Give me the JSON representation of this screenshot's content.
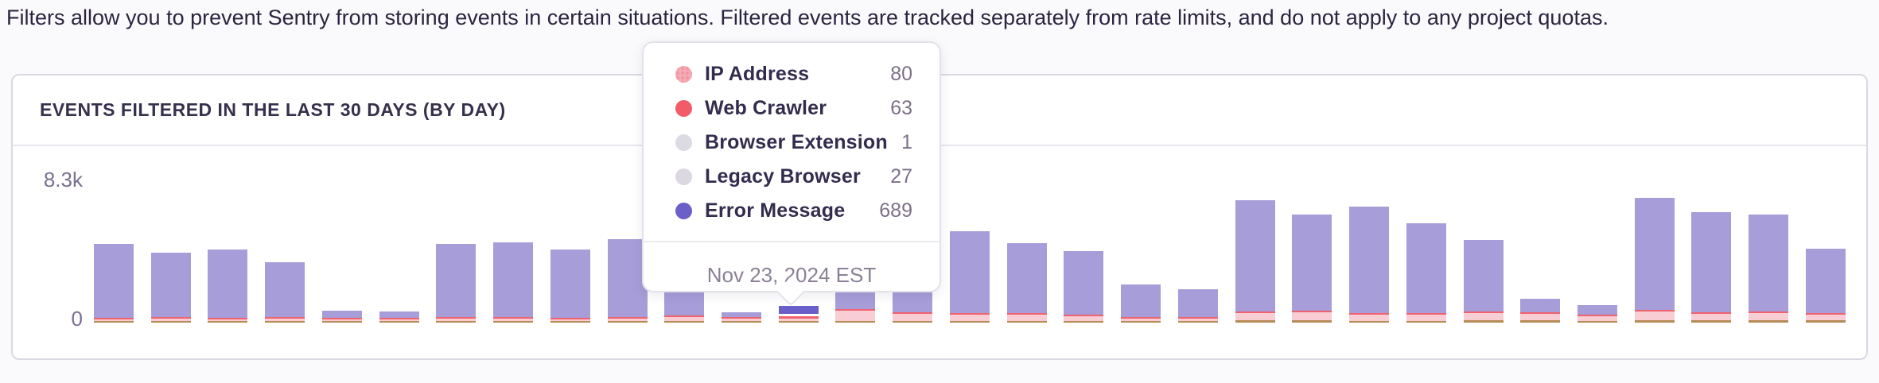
{
  "page": {
    "background": "#faf9fb",
    "description": "Filters allow you to prevent Sentry from storing events in certain situations. Filtered events are tracked separately from rate limits, and do not apply to any project quotas."
  },
  "panel": {
    "title": "EVENTS FILTERED IN THE LAST 30 DAYS (BY DAY)"
  },
  "chart": {
    "y_axis": {
      "max_label": "8.3k",
      "zero_label": "0",
      "max_value": 8300,
      "min_value": 0
    }
  },
  "chart_data": {
    "type": "bar",
    "stacked": true,
    "title": "Events filtered in the last 30 days (by day)",
    "num_days": 31,
    "ylim": [
      0,
      8300
    ],
    "layout_hints": {
      "legend": "tooltip-only",
      "grid": "off",
      "y_ticks": [
        "0",
        "8.3k"
      ]
    },
    "series": [
      {
        "name": "IP Address",
        "key": "ip_address",
        "legend_color": "#f5a9b2",
        "bar_color": "#f8cdd4",
        "pattern": true,
        "values": [
          100,
          120,
          100,
          120,
          60,
          60,
          120,
          120,
          100,
          130,
          250,
          150,
          80,
          600,
          420,
          380,
          380,
          300,
          120,
          150,
          420,
          500,
          380,
          350,
          420,
          380,
          260,
          500,
          380,
          420,
          350
        ]
      },
      {
        "name": "Web Crawler",
        "key": "web_crawler",
        "legend_color": "#f15c68",
        "bar_color": "#f0626e",
        "pattern": false,
        "values": [
          40,
          40,
          40,
          40,
          20,
          20,
          50,
          50,
          40,
          50,
          30,
          30,
          63,
          60,
          50,
          60,
          60,
          50,
          30,
          40,
          60,
          80,
          60,
          60,
          60,
          100,
          80,
          60,
          60,
          60,
          80
        ]
      },
      {
        "name": "Browser Extension",
        "key": "browser_extension",
        "legend_color": "#dcdae2",
        "bar_color": "#dcdae2",
        "pattern": false,
        "values": [
          2,
          2,
          2,
          2,
          1,
          1,
          2,
          2,
          2,
          2,
          2,
          1,
          1,
          2,
          2,
          2,
          2,
          2,
          1,
          1,
          2,
          2,
          2,
          2,
          2,
          2,
          2,
          2,
          2,
          2,
          2
        ]
      },
      {
        "name": "Legacy Browser",
        "key": "legacy_browser",
        "legend_color": "#dbd8e2",
        "bar_color": "#b68b55",
        "pattern": false,
        "values": [
          60,
          60,
          60,
          60,
          80,
          80,
          60,
          60,
          60,
          60,
          80,
          80,
          27,
          100,
          100,
          100,
          100,
          80,
          80,
          80,
          120,
          120,
          100,
          100,
          120,
          120,
          100,
          140,
          120,
          120,
          120
        ]
      },
      {
        "name": "Error Message",
        "key": "error_message",
        "legend_color": "#6c5fc7",
        "bar_color": "#a79dd8",
        "pattern": false,
        "values": [
          4398,
          3878,
          4098,
          3328,
          539,
          489,
          4368,
          4468,
          4098,
          4658,
          1508,
          349,
          689,
          1058,
          1338,
          4818,
          4118,
          3768,
          2009,
          1689,
          6578,
          5638,
          6258,
          5318,
          4248,
          798,
          588,
          6618,
          5918,
          5738,
          3788
        ]
      }
    ],
    "hovered": {
      "index": 12,
      "date_label": "Nov 23, 2024 EST",
      "values": {
        "ip_address": 80,
        "web_crawler": 63,
        "browser_extension": 1,
        "legacy_browser": 27,
        "error_message": 689
      }
    }
  },
  "tooltip": {
    "rows": [
      {
        "label": "IP Address",
        "value": 80,
        "dot_color": "#f5a9b2",
        "pattern": true
      },
      {
        "label": "Web Crawler",
        "value": 63,
        "dot_color": "#f15c68",
        "pattern": false
      },
      {
        "label": "Browser Extension",
        "value": 1,
        "dot_color": "#dcdae2",
        "pattern": false
      },
      {
        "label": "Legacy Browser",
        "value": 27,
        "dot_color": "#dbd8e2",
        "pattern": false
      },
      {
        "label": "Error Message",
        "value": 689,
        "dot_color": "#6c5fc7",
        "pattern": false
      }
    ],
    "footer": "Nov 23, 2024 EST"
  },
  "colors": {
    "bar_purple": "#a79dd8",
    "bar_purple_hover": "#6a5ec8",
    "bar_red": "#f0626e",
    "bar_pink": "#f8cdd4",
    "bar_tan": "#b68b55",
    "panel_border": "#dcd8e2",
    "header_text": "#37304c",
    "axis_label": "#7b7090",
    "description_text": "#2b2440",
    "tooltip_label": "#342c4e",
    "tooltip_value": "#7c7089",
    "tooltip_date": "#8b8197"
  }
}
